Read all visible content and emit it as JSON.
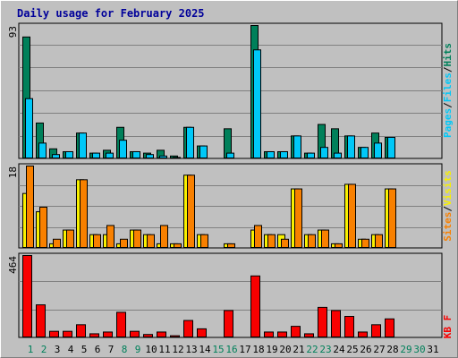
{
  "title": "Daily usage for February 2025",
  "colors": {
    "hits": "#00805a",
    "files": "#00c8f8",
    "pages": "#00c8f8",
    "visits": "#f8f000",
    "sites": "#f88000",
    "kbytes": "#f80000",
    "weekday": "#000000",
    "weekend": "#00805a",
    "separator": "#000000"
  },
  "chart_data": [
    {
      "type": "bar",
      "panel": "hits-files",
      "ymax_label": "93",
      "ylim": [
        0,
        93
      ],
      "legend": [
        "Pages",
        "/",
        "Files",
        "/",
        "Hits"
      ],
      "legend_colors": [
        "#00c8f8",
        "#000000",
        "#00c8f8",
        "#000000",
        "#00805a"
      ],
      "categories": [
        "1",
        "2",
        "3",
        "4",
        "5",
        "6",
        "7",
        "8",
        "9",
        "10",
        "11",
        "12",
        "13",
        "14",
        "15",
        "16",
        "17",
        "18",
        "19",
        "20",
        "21",
        "22",
        "23",
        "24",
        "25",
        "26",
        "27",
        "28",
        "29",
        "30",
        "31"
      ],
      "series": [
        {
          "values": [
            85,
            25,
            7,
            5,
            18,
            4,
            6,
            22,
            5,
            4,
            6,
            2,
            22,
            9,
            0,
            21,
            0,
            93,
            5,
            5,
            16,
            4,
            24,
            21,
            16,
            8,
            18,
            15,
            0,
            0,
            0
          ]
        },
        {
          "values": [
            42,
            11,
            3,
            5,
            18,
            4,
            4,
            13,
            5,
            3,
            2,
            1,
            22,
            9,
            0,
            4,
            0,
            76,
            5,
            5,
            16,
            4,
            8,
            4,
            16,
            8,
            11,
            15,
            0,
            0,
            0
          ]
        }
      ]
    },
    {
      "type": "bar",
      "panel": "visits-sites",
      "ymax_label": "18",
      "ylim": [
        0,
        18
      ],
      "legend": [
        "Sites",
        "/",
        "Visits"
      ],
      "legend_colors": [
        "#f88000",
        "#000000",
        "#f8f000"
      ],
      "categories": [
        "1",
        "2",
        "3",
        "4",
        "5",
        "6",
        "7",
        "8",
        "9",
        "10",
        "11",
        "12",
        "13",
        "14",
        "15",
        "16",
        "17",
        "18",
        "19",
        "20",
        "21",
        "22",
        "23",
        "24",
        "25",
        "26",
        "27",
        "28",
        "29",
        "30",
        "31"
      ],
      "series": [
        {
          "values": [
            12,
            8,
            1,
            4,
            15,
            3,
            3,
            1,
            4,
            3,
            1,
            1,
            16,
            3,
            0,
            1,
            0,
            4,
            3,
            3,
            13,
            3,
            4,
            1,
            14,
            2,
            3,
            13,
            0,
            0,
            0
          ]
        },
        {
          "values": [
            18,
            9,
            2,
            4,
            15,
            3,
            5,
            2,
            4,
            3,
            5,
            1,
            16,
            3,
            0,
            1,
            0,
            5,
            3,
            2,
            13,
            3,
            4,
            1,
            14,
            2,
            3,
            13,
            0,
            0,
            0
          ]
        }
      ]
    },
    {
      "type": "bar",
      "panel": "kbytes",
      "ymax_label": "464",
      "ylim": [
        0,
        464
      ],
      "legend": [
        "KB F"
      ],
      "legend_colors": [
        "#f80000"
      ],
      "categories": [
        "1",
        "2",
        "3",
        "4",
        "5",
        "6",
        "7",
        "8",
        "9",
        "10",
        "11",
        "12",
        "13",
        "14",
        "15",
        "16",
        "17",
        "18",
        "19",
        "20",
        "21",
        "22",
        "23",
        "24",
        "25",
        "26",
        "27",
        "28",
        "29",
        "30",
        "31"
      ],
      "series": [
        {
          "values": [
            464,
            186,
            37,
            37,
            74,
            23,
            33,
            144,
            37,
            19,
            33,
            12,
            98,
            51,
            0,
            154,
            0,
            349,
            33,
            33,
            65,
            23,
            172,
            154,
            121,
            33,
            74,
            107,
            0,
            0,
            0
          ]
        }
      ]
    }
  ],
  "days": [
    {
      "label": "1",
      "weekend": true
    },
    {
      "label": "2",
      "weekend": true
    },
    {
      "label": "3",
      "weekend": false
    },
    {
      "label": "4",
      "weekend": false
    },
    {
      "label": "5",
      "weekend": false
    },
    {
      "label": "6",
      "weekend": false
    },
    {
      "label": "7",
      "weekend": false
    },
    {
      "label": "8",
      "weekend": true
    },
    {
      "label": "9",
      "weekend": true
    },
    {
      "label": "10",
      "weekend": false
    },
    {
      "label": "11",
      "weekend": false
    },
    {
      "label": "12",
      "weekend": false
    },
    {
      "label": "13",
      "weekend": false
    },
    {
      "label": "14",
      "weekend": false
    },
    {
      "label": "15",
      "weekend": true
    },
    {
      "label": "16",
      "weekend": true
    },
    {
      "label": "17",
      "weekend": false
    },
    {
      "label": "18",
      "weekend": false
    },
    {
      "label": "19",
      "weekend": false
    },
    {
      "label": "20",
      "weekend": false
    },
    {
      "label": "21",
      "weekend": false
    },
    {
      "label": "22",
      "weekend": true
    },
    {
      "label": "23",
      "weekend": true
    },
    {
      "label": "24",
      "weekend": false
    },
    {
      "label": "25",
      "weekend": false
    },
    {
      "label": "26",
      "weekend": false
    },
    {
      "label": "27",
      "weekend": false
    },
    {
      "label": "28",
      "weekend": false
    },
    {
      "label": "29",
      "weekend": true
    },
    {
      "label": "30",
      "weekend": true
    },
    {
      "label": "31",
      "weekend": false
    }
  ]
}
